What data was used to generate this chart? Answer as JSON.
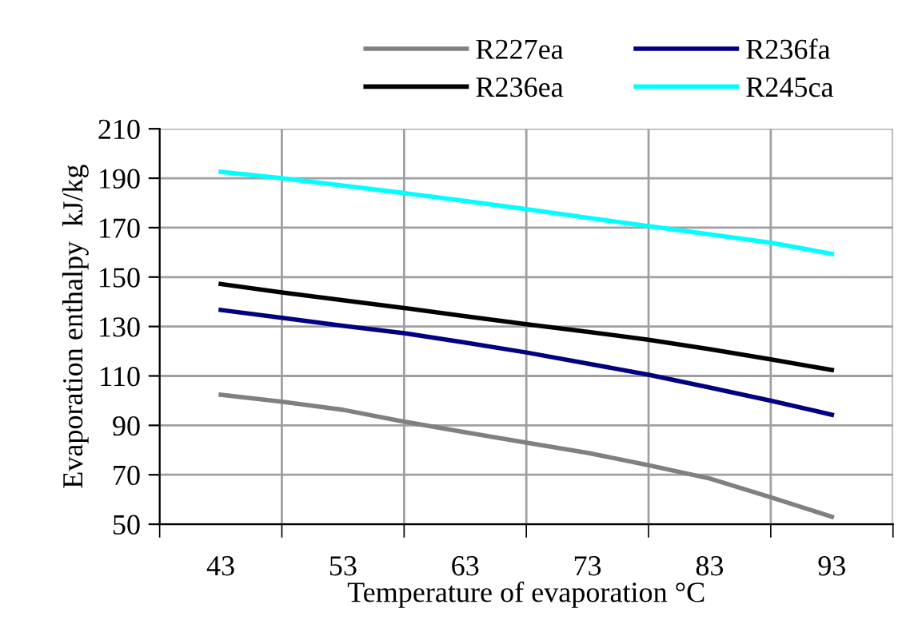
{
  "chart_data": {
    "type": "line",
    "xlabel": "Temperature of evaporation °C",
    "ylabel": "Evaporation enthalpy  kJ/kg",
    "x": [
      43,
      48,
      53,
      58,
      63,
      68,
      73,
      78,
      83,
      88,
      93
    ],
    "series": [
      {
        "name": "R227ea",
        "color": "#808080",
        "values": [
          102.4,
          99.6,
          96.3,
          91.5,
          87.2,
          83,
          78.9,
          73.9,
          68.5,
          60.9,
          53
        ]
      },
      {
        "name": "R236ea",
        "color": "#000000",
        "values": [
          147.2,
          143.8,
          140.6,
          137.5,
          134.2,
          130.9,
          127.9,
          124.6,
          120.8,
          116.7,
          112.4
        ]
      },
      {
        "name": "R236fa",
        "color": "#000080",
        "values": [
          136.7,
          133.5,
          130.3,
          127.3,
          123.5,
          119.5,
          115,
          110.5,
          105.3,
          100,
          94.3
        ]
      },
      {
        "name": "R245ca",
        "color": "#00ffff",
        "values": [
          192.6,
          190,
          187,
          184,
          180.8,
          177.5,
          174,
          170.6,
          167.3,
          163.9,
          159.4
        ]
      }
    ],
    "xlim": [
      38,
      98
    ],
    "xticks": [
      {
        "value": 38,
        "label": null
      },
      43,
      {
        "value": 48,
        "label": null
      },
      53,
      {
        "value": 58,
        "label": null
      },
      63,
      {
        "value": 68,
        "label": null
      },
      73,
      {
        "value": 78,
        "label": null
      },
      83,
      {
        "value": 88,
        "label": null
      },
      93,
      {
        "value": 98,
        "label": null
      }
    ],
    "ylim": [
      50,
      210
    ],
    "yticks": [
      50,
      70,
      90,
      110,
      130,
      150,
      170,
      190,
      210
    ],
    "grid": true,
    "legend": "top",
    "marker": "none",
    "line_style": "solid"
  }
}
